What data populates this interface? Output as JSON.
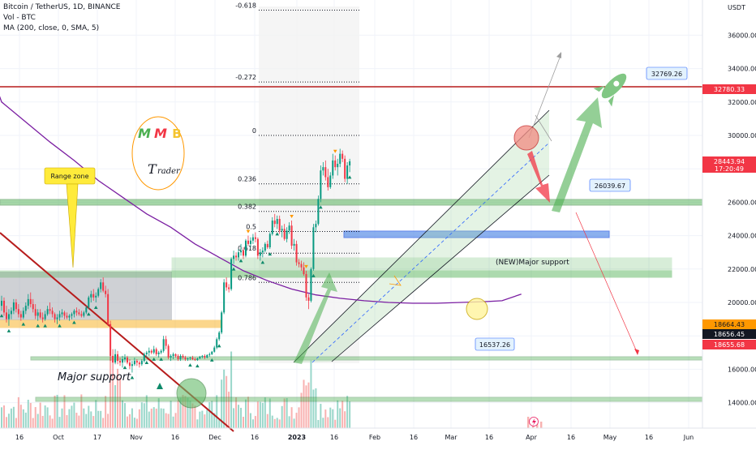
{
  "header": {
    "line1": "Bitcoin / TetherUS, 1D, BINANCE",
    "line2": "Vol - BTC",
    "line3": "MA (200, close, 0, SMA, 5)"
  },
  "chart_data": {
    "type": "candlestick",
    "yunit": "USDT",
    "y_ticks": [
      {
        "v": 36000,
        "t": "36000.00"
      },
      {
        "v": 34000,
        "t": "34000.00"
      },
      {
        "v": 32000,
        "t": "32000.00"
      },
      {
        "v": 30000,
        "t": "30000.00"
      },
      {
        "v": 28000,
        "t": "28000.00"
      },
      {
        "v": 26000,
        "t": "26000.00"
      },
      {
        "v": 24000,
        "t": "24000.00"
      },
      {
        "v": 22000,
        "t": "22000.00"
      },
      {
        "v": 20000,
        "t": "20000.00"
      },
      {
        "v": 18000,
        "t": "18000.00"
      },
      {
        "v": 16000,
        "t": "16000.00"
      },
      {
        "v": 14000,
        "t": "14000.00"
      }
    ],
    "x_ticks": [
      "16",
      "Oct",
      "17",
      "Nov",
      "16",
      "Dec",
      "16",
      "2023",
      "16",
      "Feb",
      "16",
      "Mar",
      "16",
      "Apr",
      "16",
      "May",
      "16",
      "Jun"
    ],
    "price_tags": [
      {
        "value": 32780.33,
        "text": "32780.33",
        "color": "#f23645",
        "fg": "#ffffff"
      },
      {
        "value": 28443.94,
        "text": "28443.94",
        "text2": "17:20:49",
        "color": "#f23645",
        "fg": "#ffffff"
      },
      {
        "value": 18664.43,
        "text": "18664.43",
        "color": "#ff9800",
        "fg": "#131722"
      },
      {
        "value": 18656.45,
        "text": "18656.45",
        "color": "#131722",
        "fg": "#ffffff"
      },
      {
        "value": 18655.68,
        "text": "18655.68",
        "color": "#f23645",
        "fg": "#ffffff"
      }
    ],
    "fib_levels": [
      {
        "label": "-0.618",
        "value": 37500
      },
      {
        "label": "-0.272",
        "value": 33200
      },
      {
        "label": "0",
        "value": 30000
      },
      {
        "label": "0.236",
        "value": 27100
      },
      {
        "label": "0.382",
        "value": 25450
      },
      {
        "label": "0.5",
        "value": 24250
      },
      {
        "label": "0.618",
        "value": 22950
      },
      {
        "label": "0.786",
        "value": 21200
      }
    ],
    "callouts": [
      {
        "text": "32769.26",
        "value": 32769.26
      },
      {
        "text": "26039.67",
        "value": 26039.67
      },
      {
        "text": "16537.26",
        "value": 16537.26
      }
    ],
    "annotations": {
      "range_zone": "Range zone",
      "major_support": "Major support",
      "new_major_support": "(NEW)Major support",
      "logo_line1": [
        "M",
        "M",
        "B"
      ],
      "logo_line2": "Trader"
    },
    "series": [
      {
        "name": "BTCUSDT",
        "kind": "candles",
        "values": [
          [
            19800,
            20400,
            19500,
            20100
          ],
          [
            20100,
            20300,
            19200,
            19400
          ],
          [
            19400,
            19800,
            18800,
            19000
          ],
          [
            19000,
            19600,
            18600,
            19300
          ],
          [
            19300,
            19700,
            19000,
            19500
          ],
          [
            19500,
            20200,
            19300,
            20000
          ],
          [
            20000,
            20200,
            19400,
            19600
          ],
          [
            19600,
            19900,
            19100,
            19300
          ],
          [
            19300,
            19500,
            18900,
            19100
          ],
          [
            19100,
            19700,
            19000,
            19500
          ],
          [
            19500,
            20000,
            19300,
            19800
          ],
          [
            19800,
            20500,
            19600,
            20200
          ],
          [
            20200,
            20600,
            19700,
            19900
          ],
          [
            19900,
            20200,
            19400,
            19600
          ],
          [
            19600,
            19900,
            19000,
            19200
          ],
          [
            19200,
            19600,
            18900,
            19400
          ],
          [
            19400,
            19600,
            19000,
            19100
          ],
          [
            19100,
            19400,
            18800,
            19000
          ],
          [
            19000,
            19500,
            18900,
            19300
          ],
          [
            19300,
            19800,
            19200,
            19600
          ],
          [
            19600,
            20000,
            19300,
            19500
          ],
          [
            19500,
            19700,
            19100,
            19300
          ],
          [
            19300,
            19400,
            18800,
            19000
          ],
          [
            19000,
            19300,
            18700,
            19100
          ],
          [
            19100,
            19500,
            18900,
            19300
          ],
          [
            19300,
            19600,
            19100,
            19400
          ],
          [
            19400,
            19500,
            19000,
            19200
          ],
          [
            19200,
            19400,
            19000,
            19100
          ],
          [
            19100,
            19300,
            18900,
            19200
          ],
          [
            19200,
            19400,
            19000,
            19300
          ],
          [
            19300,
            19600,
            19100,
            19500
          ],
          [
            19500,
            19700,
            19200,
            19400
          ],
          [
            19400,
            19600,
            19200,
            19300
          ],
          [
            19300,
            19500,
            19100,
            19200
          ],
          [
            19200,
            19500,
            19100,
            19400
          ],
          [
            19400,
            19800,
            19300,
            19700
          ],
          [
            19700,
            20400,
            19600,
            20300
          ],
          [
            20300,
            20700,
            20000,
            20500
          ],
          [
            20500,
            20800,
            20100,
            20300
          ],
          [
            20300,
            20600,
            20000,
            20400
          ],
          [
            20400,
            20900,
            20300,
            20800
          ],
          [
            20800,
            21400,
            20600,
            21200
          ],
          [
            21200,
            21500,
            20600,
            20700
          ],
          [
            20700,
            21000,
            20300,
            20500
          ],
          [
            20500,
            20800,
            18600,
            18700
          ],
          [
            18700,
            18900,
            16500,
            16800
          ],
          [
            16800,
            17200,
            15600,
            16400
          ],
          [
            16400,
            17200,
            16300,
            16900
          ],
          [
            16900,
            17100,
            16300,
            16500
          ],
          [
            16500,
            16700,
            16200,
            16400
          ],
          [
            16400,
            16800,
            16100,
            16600
          ],
          [
            16600,
            16900,
            16400,
            16700
          ],
          [
            16700,
            16800,
            16300,
            16400
          ],
          [
            16400,
            16600,
            16000,
            16200
          ],
          [
            16200,
            16500,
            15800,
            16300
          ],
          [
            16300,
            16700,
            16200,
            16500
          ],
          [
            16500,
            16600,
            16200,
            16400
          ],
          [
            16400,
            16500,
            16100,
            16300
          ],
          [
            16300,
            16600,
            16200,
            16500
          ],
          [
            16500,
            17000,
            16400,
            16900
          ],
          [
            16900,
            17100,
            16700,
            17000
          ],
          [
            17000,
            17300,
            16800,
            17100
          ],
          [
            17100,
            17200,
            16900,
            17000
          ],
          [
            17000,
            17400,
            16900,
            17200
          ],
          [
            17200,
            17300,
            16800,
            16900
          ],
          [
            16900,
            17100,
            16700,
            17000
          ],
          [
            17000,
            17200,
            16900,
            17100
          ],
          [
            17100,
            18000,
            17000,
            17800
          ],
          [
            17800,
            18000,
            17200,
            17400
          ],
          [
            17400,
            17500,
            16600,
            16700
          ],
          [
            16700,
            16900,
            16500,
            16800
          ],
          [
            16800,
            17000,
            16600,
            16900
          ],
          [
            16900,
            16950,
            16700,
            16800
          ],
          [
            16800,
            16900,
            16500,
            16600
          ],
          [
            16600,
            16900,
            16500,
            16800
          ],
          [
            16800,
            16900,
            16600,
            16700
          ],
          [
            16700,
            16800,
            16500,
            16600
          ],
          [
            16600,
            16700,
            16500,
            16650
          ],
          [
            16650,
            16750,
            16550,
            16700
          ],
          [
            16700,
            16800,
            16550,
            16600
          ],
          [
            16600,
            16700,
            16500,
            16550
          ],
          [
            16550,
            16700,
            16500,
            16650
          ],
          [
            16650,
            16800,
            16600,
            16750
          ],
          [
            16750,
            16850,
            16650,
            16800
          ],
          [
            16800,
            16900,
            16600,
            16700
          ],
          [
            16700,
            16900,
            16650,
            16850
          ],
          [
            16850,
            17000,
            16750,
            16900
          ],
          [
            16900,
            17100,
            16850,
            17050
          ],
          [
            17050,
            17400,
            17000,
            17300
          ],
          [
            17300,
            17900,
            17200,
            17800
          ],
          [
            17800,
            18300,
            17700,
            18200
          ],
          [
            18200,
            19500,
            18100,
            19400
          ],
          [
            19400,
            21400,
            19300,
            21200
          ],
          [
            21200,
            21500,
            20700,
            20900
          ],
          [
            20900,
            21100,
            20600,
            20800
          ],
          [
            20800,
            22700,
            20700,
            22600
          ],
          [
            22600,
            23100,
            22300,
            22800
          ],
          [
            22800,
            23000,
            22500,
            22700
          ],
          [
            22700,
            23200,
            22500,
            23000
          ],
          [
            23000,
            23500,
            22800,
            23100
          ],
          [
            23100,
            23300,
            22600,
            22800
          ],
          [
            22800,
            23800,
            22700,
            23700
          ],
          [
            23700,
            24000,
            23400,
            23500
          ],
          [
            23500,
            23900,
            23300,
            23700
          ],
          [
            23700,
            24100,
            23500,
            23900
          ],
          [
            23900,
            24200,
            23600,
            23800
          ],
          [
            23800,
            23900,
            22600,
            22800
          ],
          [
            22800,
            23200,
            22500,
            23000
          ],
          [
            23000,
            23300,
            22700,
            23100
          ],
          [
            23100,
            23600,
            23000,
            23500
          ],
          [
            23500,
            23700,
            23200,
            23300
          ],
          [
            23300,
            24200,
            23200,
            24100
          ],
          [
            24100,
            25100,
            24000,
            24900
          ],
          [
            24900,
            25300,
            24500,
            24700
          ],
          [
            24700,
            25200,
            24400,
            25000
          ],
          [
            25000,
            25200,
            24100,
            24300
          ],
          [
            24300,
            24600,
            23900,
            24400
          ],
          [
            24400,
            24700,
            23700,
            23800
          ],
          [
            23800,
            24500,
            23600,
            24300
          ],
          [
            24300,
            24800,
            24100,
            24600
          ],
          [
            24600,
            24900,
            23200,
            23400
          ],
          [
            23400,
            23800,
            23100,
            23500
          ],
          [
            23500,
            23700,
            22200,
            22400
          ],
          [
            22400,
            22600,
            22100,
            22300
          ],
          [
            22300,
            22500,
            21900,
            22100
          ],
          [
            22100,
            22400,
            21600,
            21700
          ],
          [
            21700,
            21900,
            20100,
            20300
          ],
          [
            20300,
            20500,
            19600,
            20100
          ],
          [
            20100,
            22100,
            20000,
            22000
          ],
          [
            22000,
            24700,
            21900,
            24500
          ],
          [
            24500,
            24900,
            24200,
            24700
          ],
          [
            24700,
            26400,
            24600,
            26200
          ],
          [
            26200,
            28200,
            26000,
            27900
          ],
          [
            27900,
            28400,
            27600,
            28100
          ],
          [
            28100,
            28500,
            27300,
            27500
          ],
          [
            27500,
            28000,
            26700,
            26900
          ],
          [
            26900,
            27800,
            26800,
            27600
          ],
          [
            27600,
            28900,
            27400,
            28500
          ],
          [
            28500,
            28800,
            27900,
            28100
          ],
          [
            28100,
            28600,
            27600,
            28300
          ],
          [
            28300,
            29200,
            28100,
            28900
          ],
          [
            28900,
            29100,
            28400,
            28600
          ],
          [
            28600,
            28800,
            27200,
            27400
          ],
          [
            27400,
            28400,
            27100,
            28200
          ],
          [
            28200,
            28600,
            27800,
            28450
          ]
        ]
      },
      {
        "name": "MA 200",
        "kind": "line",
        "values": [
          [
            -5,
            34000
          ],
          [
            0,
            32000
          ],
          [
            10,
            30800
          ],
          [
            20,
            29600
          ],
          [
            30,
            28500
          ],
          [
            40,
            27300
          ],
          [
            50,
            26300
          ],
          [
            60,
            25300
          ],
          [
            70,
            24500
          ],
          [
            80,
            23500
          ],
          [
            90,
            22700
          ],
          [
            100,
            21900
          ],
          [
            110,
            21300
          ],
          [
            120,
            20800
          ],
          [
            130,
            20450
          ],
          [
            140,
            20250
          ],
          [
            150,
            20100
          ],
          [
            160,
            20000
          ],
          [
            170,
            19950
          ],
          [
            180,
            19950
          ],
          [
            190,
            20000
          ],
          [
            200,
            20050
          ],
          [
            207,
            20100
          ],
          [
            215,
            20500
          ]
        ]
      }
    ]
  }
}
